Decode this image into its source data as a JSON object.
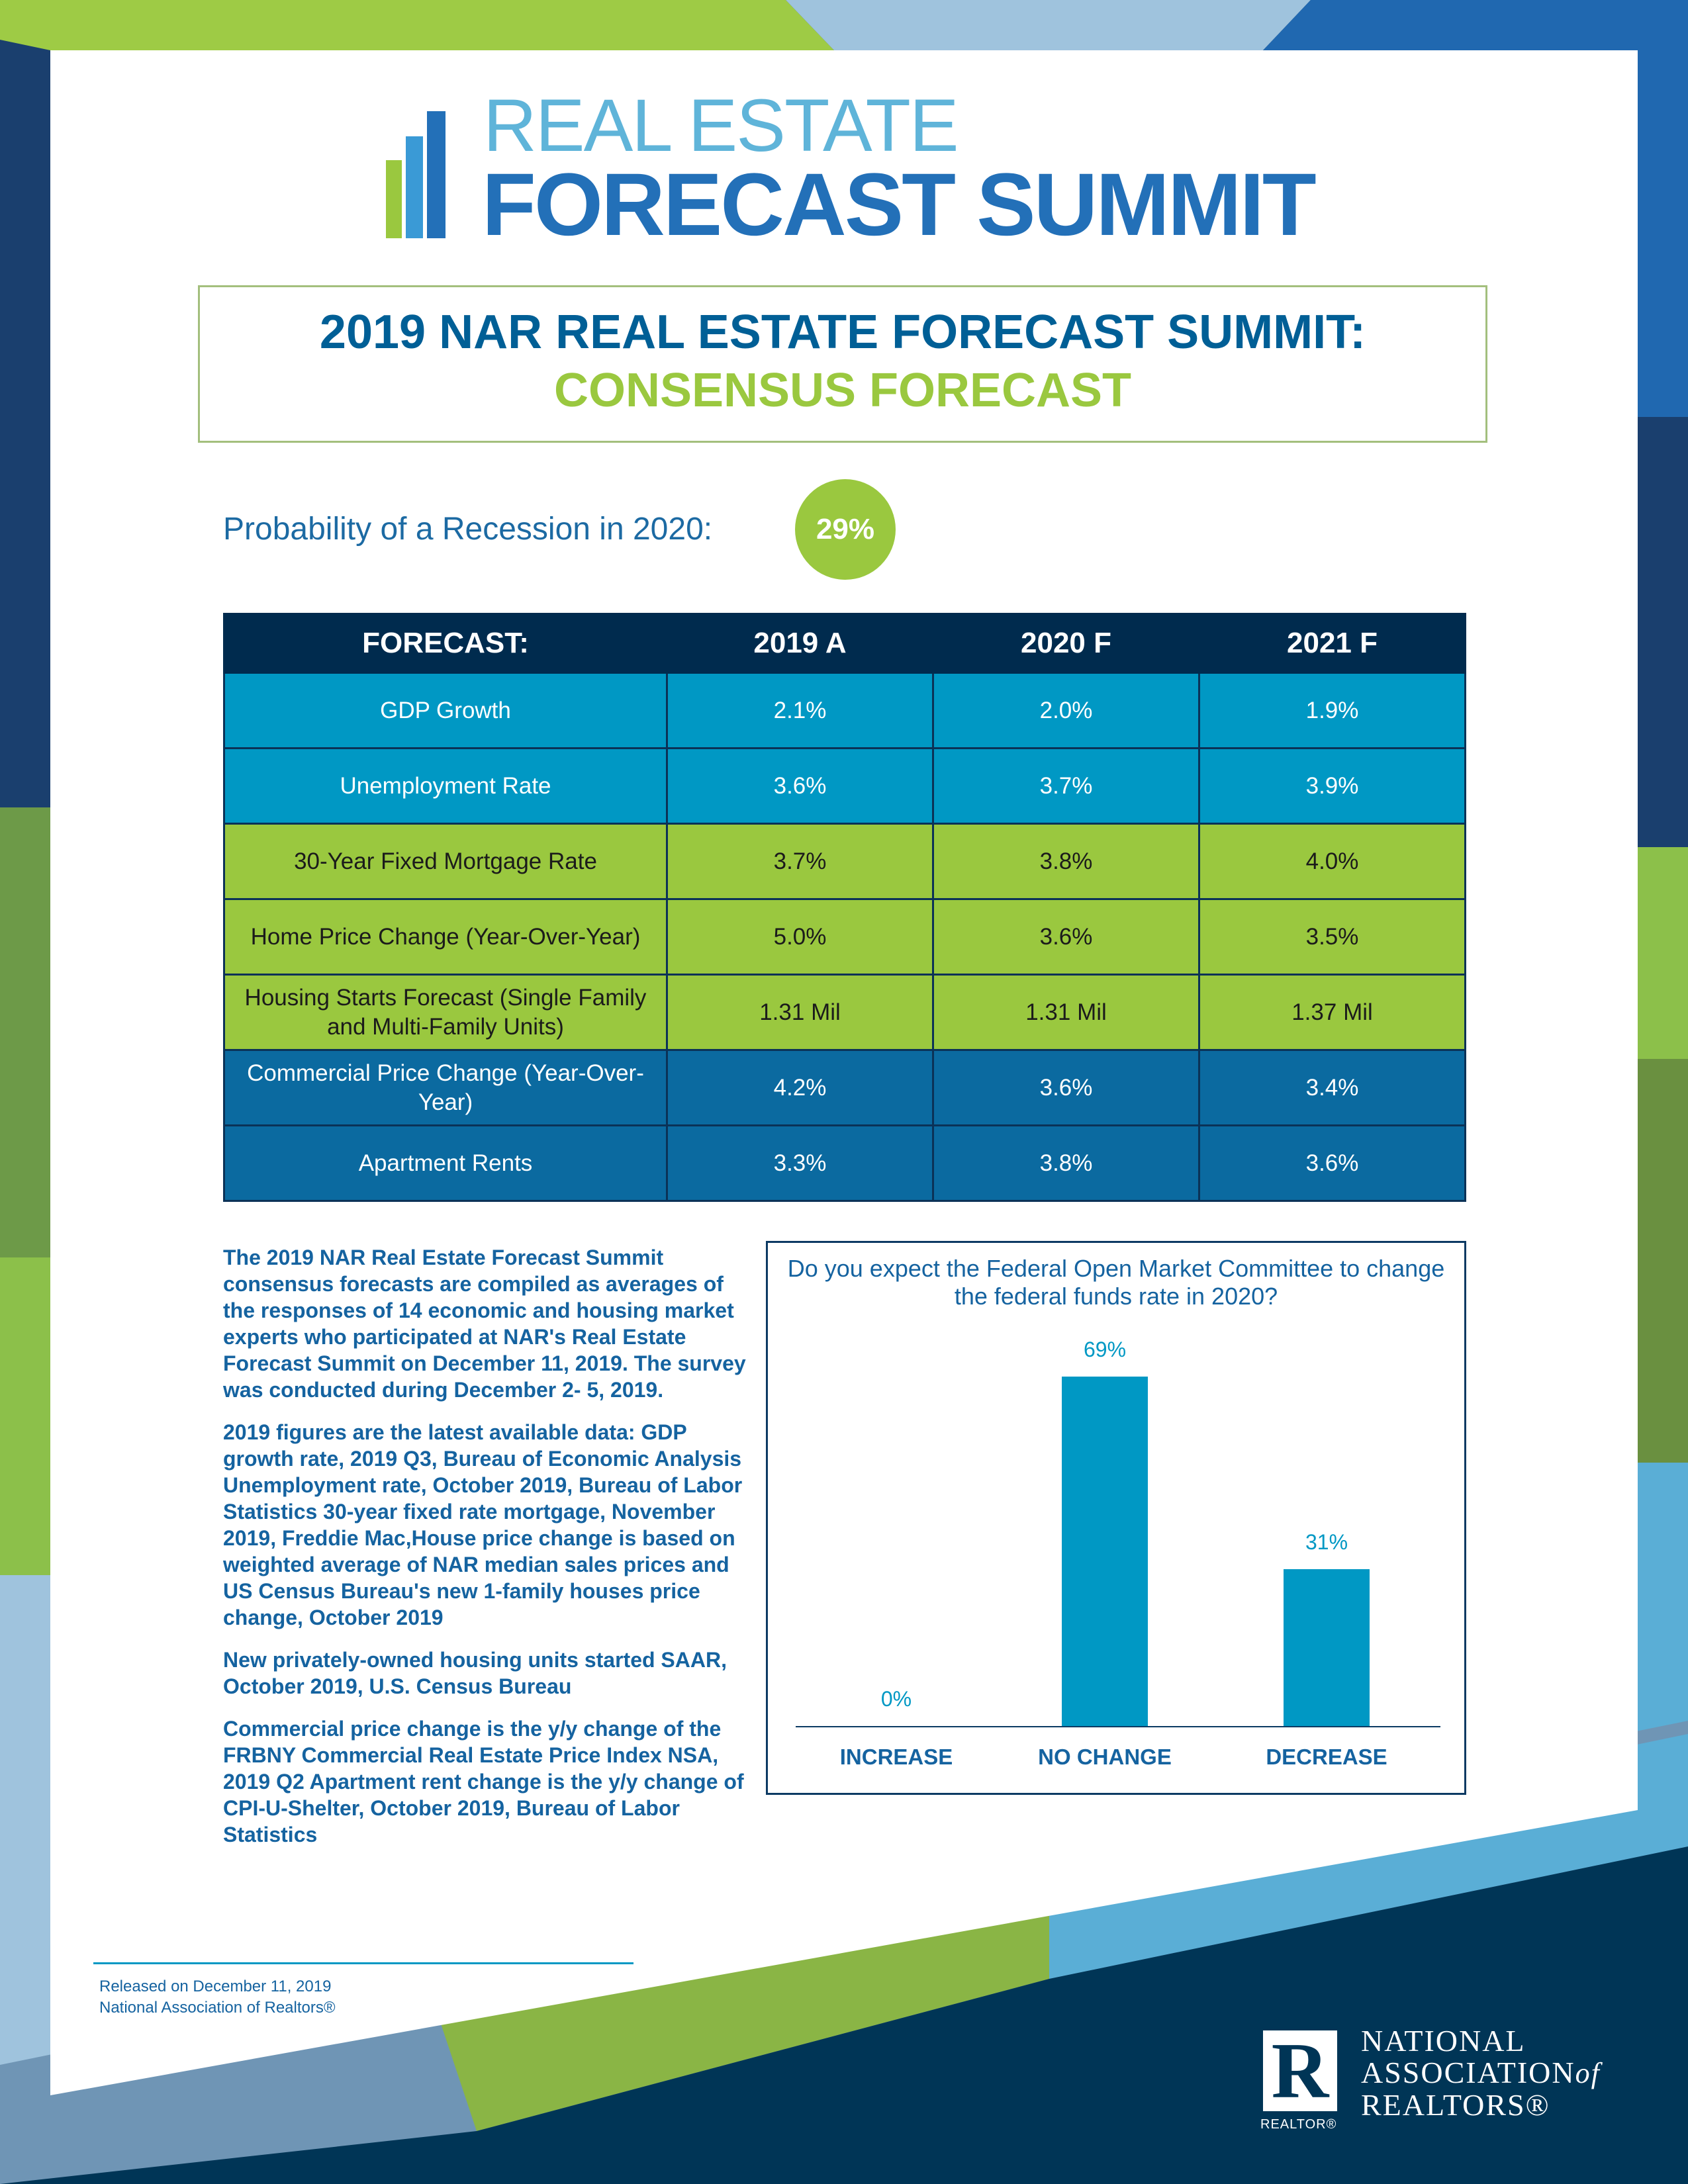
{
  "logo": {
    "line1": "REAL ESTATE",
    "line2": "FORECAST SUMMIT"
  },
  "title": {
    "line1": "2019 NAR REAL ESTATE FORECAST SUMMIT:",
    "line2": "CONSENSUS FORECAST"
  },
  "recession": {
    "label": "Probability of a Recession in 2020:",
    "value": "29%"
  },
  "table": {
    "headers": [
      "FORECAST:",
      "2019 A",
      "2020 F",
      "2021 F"
    ],
    "rows": [
      {
        "label": "GDP Growth",
        "values": [
          "2.1%",
          "2.0%",
          "1.9%"
        ]
      },
      {
        "label": "Unemployment Rate",
        "values": [
          "3.6%",
          "3.7%",
          "3.9%"
        ]
      },
      {
        "label": "30-Year Fixed Mortgage Rate",
        "values": [
          "3.7%",
          "3.8%",
          "4.0%"
        ]
      },
      {
        "label": "Home Price Change (Year-Over-Year)",
        "values": [
          "5.0%",
          "3.6%",
          "3.5%"
        ]
      },
      {
        "label": "Housing Starts Forecast (Single Family and Multi-Family Units)",
        "values": [
          "1.31 Mil",
          "1.31 Mil",
          "1.37 Mil"
        ]
      },
      {
        "label": "Commercial Price Change (Year-Over-Year)",
        "values": [
          "4.2%",
          "3.6%",
          "3.4%"
        ]
      },
      {
        "label": "Apartment Rents",
        "values": [
          "3.3%",
          "3.8%",
          "3.6%"
        ]
      }
    ]
  },
  "notes": [
    "The 2019 NAR Real Estate Forecast Summit consensus forecasts are compiled as averages of the responses of 14 economic and housing market experts who participated at NAR's Real Estate Forecast Summit on December 11, 2019. The survey was conducted during December 2- 5, 2019.",
    "2019 figures are the latest available data: GDP growth rate, 2019 Q3, Bureau of Economic Analysis Unemployment rate, October 2019, Bureau of Labor Statistics 30-year fixed rate mortgage, November 2019, Freddie Mac,House price change is based on weighted average of NAR median sales prices and  US Census Bureau's new 1-family houses price change, October 2019",
    "New privately-owned housing units started SAAR, October 2019, U.S. Census Bureau",
    "Commercial price change is the y/y change of the FRBNY Commercial Real Estate Price Index NSA, 2019 Q2 Apartment rent change is the y/y change of CPI-U-Shelter, October 2019, Bureau of Labor Statistics"
  ],
  "chart_data": {
    "type": "bar",
    "title": "Do you expect the Federal Open Market Committee to change the federal funds rate in 2020?",
    "categories": [
      "INCREASE",
      "NO CHANGE",
      "DECREASE"
    ],
    "values": [
      0,
      69,
      31
    ],
    "labels": [
      "0%",
      "69%",
      "31%"
    ],
    "ylim": [
      0,
      100
    ],
    "color": "#0098c4"
  },
  "footer": {
    "released": "Released on December 11, 2019",
    "org": "National Association of Realtors®"
  },
  "nar_logo": {
    "line1": "NATIONAL",
    "line2": "ASSOCIATION",
    "of": "of",
    "line3": "REALTORS®",
    "realtor": "REALTOR®"
  }
}
